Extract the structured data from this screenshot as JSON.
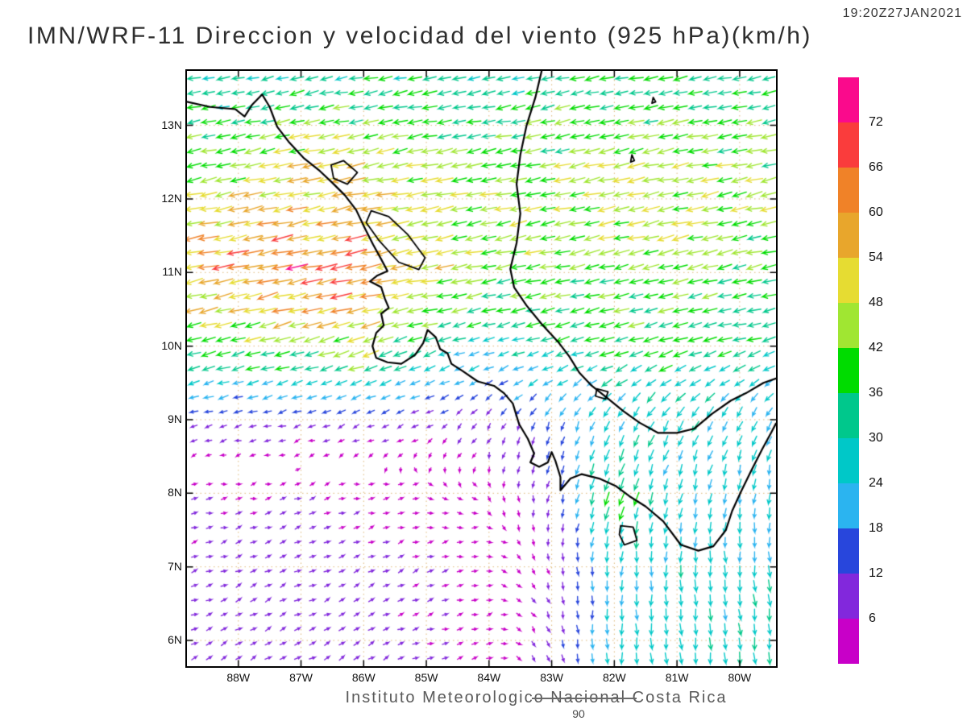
{
  "header": {
    "timestamp": "19:20Z27JAN2021",
    "title": "IMN/WRF-11 Direccion y velocidad del viento (925 hPa)(km/h)"
  },
  "footer": {
    "text": "Instituto Meteorologico Nacional Costa Rica",
    "page_number": "90"
  },
  "colorbar": {
    "units": "km/h",
    "labels": [
      72,
      66,
      60,
      54,
      48,
      42,
      36,
      30,
      24,
      18,
      12,
      6
    ],
    "colors_top_to_bottom": [
      "#fa0a8c",
      "#fa3c3c",
      "#f08228",
      "#e8a62c",
      "#e6dc32",
      "#a0e632",
      "#00dc00",
      "#00c88c",
      "#00c8c8",
      "#2bb4f0",
      "#2846dc",
      "#8228dc",
      "#c800c8"
    ]
  },
  "axes": {
    "lat_labels": [
      "13N",
      "12N",
      "11N",
      "10N",
      "9N",
      "8N",
      "7N",
      "6N"
    ],
    "lon_labels": [
      "88W",
      "87W",
      "86W",
      "85W",
      "84W",
      "83W",
      "82W",
      "81W",
      "80W"
    ],
    "lat_range": [
      5.65,
      13.74
    ],
    "lon_range_west": [
      88.82,
      79.42
    ],
    "grid_style": "dotted"
  },
  "chart_data": {
    "type": "vector_field",
    "model": "IMN/WRF-11",
    "variable": "Direccion y velocidad del viento",
    "level": "925 hPa",
    "units": "km/h",
    "valid_time": "19:20Z27JAN2021",
    "colorbar_levels_kmh": [
      6,
      12,
      18,
      24,
      30,
      36,
      42,
      48,
      54,
      60,
      66,
      72
    ],
    "wind_grid": {
      "comment": "u positive eastward, v positive northward, km/h; lons in degrees West; coarse grid read from the vector plot",
      "lons": [
        89,
        88,
        87,
        86,
        85,
        84,
        83,
        82,
        81,
        80,
        79
      ],
      "lats": [
        14,
        13,
        12,
        11,
        10,
        9,
        8,
        7,
        6,
        5
      ],
      "u": [
        [
          -28,
          -28,
          -29,
          -30,
          -29,
          -28,
          -30,
          -31,
          -30,
          -28,
          -27
        ],
        [
          -34,
          -36,
          -40,
          -40,
          -38,
          -36,
          -38,
          -40,
          -40,
          -38,
          -36
        ],
        [
          -48,
          -50,
          -54,
          -52,
          -46,
          -44,
          -44,
          -46,
          -46,
          -44,
          -42
        ],
        [
          -58,
          -60,
          -66,
          -62,
          -50,
          -42,
          -40,
          -40,
          -40,
          -38,
          -36
        ],
        [
          -36,
          -38,
          -40,
          -48,
          -30,
          -24,
          -32,
          -36,
          -36,
          -34,
          -30
        ],
        [
          -12,
          -12,
          -10,
          -10,
          -8,
          -6,
          -6,
          -10,
          -14,
          -12,
          -10
        ],
        [
          5,
          6,
          6,
          5,
          4,
          2,
          -2,
          -12,
          -6,
          -4,
          -3
        ],
        [
          6,
          7,
          7,
          6,
          6,
          4,
          2,
          -2,
          0,
          2,
          2
        ],
        [
          7,
          8,
          8,
          7,
          6,
          5,
          3,
          0,
          2,
          3,
          3
        ],
        [
          7,
          8,
          8,
          7,
          6,
          5,
          3,
          1,
          2,
          3,
          3
        ]
      ],
      "v": [
        [
          -5,
          -5,
          -6,
          -6,
          -5,
          -5,
          -6,
          -6,
          -6,
          -5,
          -5
        ],
        [
          -8,
          -8,
          -9,
          -8,
          -7,
          -7,
          -8,
          -8,
          -8,
          -7,
          -7
        ],
        [
          -10,
          -10,
          -12,
          -11,
          -9,
          -9,
          -9,
          -10,
          -10,
          -9,
          -9
        ],
        [
          -12,
          -13,
          -14,
          -12,
          -10,
          -8,
          -8,
          -9,
          -9,
          -8,
          -8
        ],
        [
          -10,
          -11,
          -12,
          -16,
          -10,
          -8,
          -9,
          -10,
          -10,
          -9,
          -9
        ],
        [
          -3,
          -3,
          -3,
          -4,
          -4,
          -8,
          -16,
          -22,
          -24,
          -22,
          -20
        ],
        [
          1,
          1,
          2,
          1,
          0,
          -3,
          -10,
          -38,
          -24,
          -24,
          -25
        ],
        [
          2,
          3,
          3,
          3,
          2,
          1,
          -6,
          -24,
          -26,
          -26,
          -26
        ],
        [
          3,
          4,
          4,
          4,
          2,
          1,
          -8,
          -26,
          -28,
          -28,
          -27
        ],
        [
          4,
          4,
          5,
          4,
          3,
          1,
          -8,
          -26,
          -28,
          -28,
          -27
        ]
      ]
    },
    "coastlines": {
      "pacific": [
        [
          88.82,
          13.32
        ],
        [
          88.45,
          13.25
        ],
        [
          88.05,
          13.22
        ],
        [
          87.9,
          13.12
        ],
        [
          87.78,
          13.28
        ],
        [
          87.62,
          13.42
        ],
        [
          87.5,
          13.25
        ],
        [
          87.38,
          12.98
        ],
        [
          87.2,
          12.78
        ],
        [
          86.95,
          12.55
        ],
        [
          86.7,
          12.38
        ],
        [
          86.5,
          12.22
        ],
        [
          86.3,
          12.05
        ],
        [
          86.12,
          11.85
        ],
        [
          85.98,
          11.6
        ],
        [
          85.85,
          11.38
        ],
        [
          85.72,
          11.18
        ],
        [
          85.62,
          11.02
        ],
        [
          85.78,
          10.96
        ],
        [
          85.9,
          10.88
        ],
        [
          85.72,
          10.8
        ],
        [
          85.66,
          10.64
        ],
        [
          85.6,
          10.52
        ],
        [
          85.72,
          10.44
        ],
        [
          85.68,
          10.28
        ],
        [
          85.8,
          10.18
        ],
        [
          85.86,
          10.0
        ],
        [
          85.8,
          9.84
        ],
        [
          85.62,
          9.78
        ],
        [
          85.4,
          9.76
        ],
        [
          85.18,
          9.88
        ],
        [
          85.05,
          10.04
        ],
        [
          84.98,
          10.22
        ],
        [
          84.85,
          10.12
        ],
        [
          84.78,
          9.96
        ],
        [
          84.66,
          9.9
        ],
        [
          84.6,
          9.76
        ],
        [
          84.42,
          9.66
        ],
        [
          84.18,
          9.52
        ],
        [
          83.92,
          9.46
        ],
        [
          83.76,
          9.36
        ],
        [
          83.62,
          9.22
        ],
        [
          83.56,
          9.05
        ],
        [
          83.52,
          8.94
        ],
        [
          83.38,
          8.74
        ],
        [
          83.28,
          8.54
        ],
        [
          83.34,
          8.42
        ],
        [
          83.2,
          8.36
        ],
        [
          83.06,
          8.42
        ],
        [
          83.0,
          8.56
        ],
        [
          82.94,
          8.44
        ],
        [
          82.86,
          8.22
        ],
        [
          82.86,
          8.04
        ],
        [
          82.7,
          8.2
        ],
        [
          82.52,
          8.26
        ],
        [
          82.24,
          8.2
        ],
        [
          81.98,
          8.1
        ],
        [
          81.76,
          7.96
        ],
        [
          81.5,
          7.82
        ],
        [
          81.22,
          7.62
        ],
        [
          80.94,
          7.3
        ],
        [
          80.66,
          7.22
        ],
        [
          80.42,
          7.28
        ],
        [
          80.22,
          7.5
        ],
        [
          80.12,
          7.76
        ],
        [
          79.98,
          8.02
        ],
        [
          79.82,
          8.3
        ],
        [
          79.64,
          8.6
        ],
        [
          79.5,
          8.82
        ],
        [
          79.42,
          8.95
        ]
      ],
      "caribbean": [
        [
          83.16,
          13.74
        ],
        [
          83.26,
          13.38
        ],
        [
          83.4,
          13.0
        ],
        [
          83.5,
          12.6
        ],
        [
          83.56,
          12.2
        ],
        [
          83.5,
          11.8
        ],
        [
          83.56,
          11.4
        ],
        [
          83.66,
          11.05
        ],
        [
          83.6,
          10.8
        ],
        [
          83.4,
          10.55
        ],
        [
          83.16,
          10.3
        ],
        [
          82.9,
          10.06
        ],
        [
          82.72,
          9.86
        ],
        [
          82.56,
          9.64
        ],
        [
          82.36,
          9.46
        ],
        [
          82.12,
          9.3
        ],
        [
          81.86,
          9.12
        ],
        [
          81.6,
          8.96
        ],
        [
          81.3,
          8.82
        ],
        [
          81.0,
          8.82
        ],
        [
          80.72,
          8.88
        ],
        [
          80.44,
          9.08
        ],
        [
          80.14,
          9.26
        ],
        [
          79.9,
          9.36
        ],
        [
          79.62,
          9.5
        ],
        [
          79.42,
          9.56
        ]
      ],
      "lakes": [
        [
          [
            86.52,
            12.46
          ],
          [
            86.32,
            12.52
          ],
          [
            86.1,
            12.36
          ],
          [
            86.26,
            12.2
          ],
          [
            86.48,
            12.28
          ]
        ],
        [
          [
            85.88,
            11.84
          ],
          [
            85.6,
            11.76
          ],
          [
            85.3,
            11.52
          ],
          [
            85.02,
            11.2
          ],
          [
            85.12,
            11.04
          ],
          [
            85.44,
            11.14
          ],
          [
            85.76,
            11.44
          ],
          [
            85.96,
            11.68
          ]
        ]
      ],
      "islands": [
        [
          [
            81.9,
            7.56
          ],
          [
            81.7,
            7.54
          ],
          [
            81.64,
            7.36
          ],
          [
            81.84,
            7.3
          ],
          [
            81.92,
            7.44
          ]
        ],
        [
          [
            82.28,
            9.42
          ],
          [
            82.1,
            9.38
          ],
          [
            82.14,
            9.28
          ],
          [
            82.3,
            9.32
          ]
        ],
        [
          [
            81.38,
            13.38
          ],
          [
            81.34,
            13.32
          ],
          [
            81.4,
            13.3
          ]
        ],
        [
          [
            81.72,
            12.6
          ],
          [
            81.68,
            12.52
          ],
          [
            81.74,
            12.5
          ]
        ]
      ]
    }
  }
}
